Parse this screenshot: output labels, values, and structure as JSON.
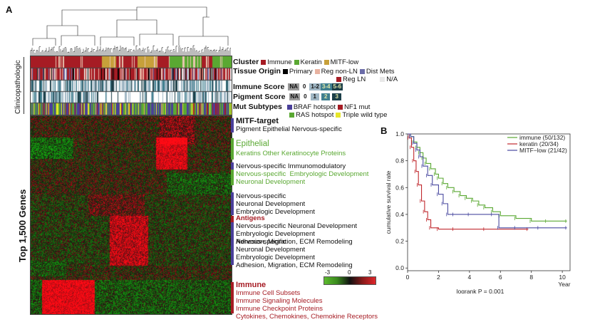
{
  "panel_a": {
    "label": "A",
    "side_label_clin": "Clinicopathologic",
    "side_label_genes": "Top 1,500 Genes",
    "rows": [
      {
        "label": "Cluster",
        "legend": [
          {
            "text": "Immune",
            "color": "#a61c24"
          },
          {
            "text": "Keratin",
            "color": "#5aa832"
          },
          {
            "text": "MITF-low",
            "color": "#c7a03a"
          }
        ]
      },
      {
        "label": "Tissue Origin",
        "legend": [
          {
            "text": "Primary",
            "color": "#000000"
          },
          {
            "text": "Reg non-LN",
            "color": "#e8b2a0"
          },
          {
            "text": "Dist Mets",
            "color": "#6b6ca8"
          },
          {
            "text": "Reg LN",
            "color": "#a61c24"
          },
          {
            "text": "N/A",
            "color": "#e8e8e8"
          }
        ]
      },
      {
        "label": "Immune Score",
        "legend": [
          {
            "text": "NA",
            "color": "#9a9a9a"
          },
          {
            "text": "0",
            "color": "#ffffff"
          },
          {
            "text": "1-2",
            "color": "#9fb6c4"
          },
          {
            "text": "3-4",
            "color": "#3f7f8f"
          },
          {
            "text": "5-6",
            "color": "#1c3f49"
          }
        ]
      },
      {
        "label": "Pigment Score",
        "legend": [
          {
            "text": "NA",
            "color": "#9a9a9a"
          },
          {
            "text": "0",
            "color": "#ffffff"
          },
          {
            "text": "1",
            "color": "#9fb6c4"
          },
          {
            "text": "2",
            "color": "#3f7f8f"
          },
          {
            "text": "3",
            "color": "#1c3f49"
          }
        ]
      },
      {
        "label": "Mut Subtypes",
        "legend": [
          {
            "text": "BRAF hotspot",
            "color": "#4a3f9a"
          },
          {
            "text": "NF1 mut",
            "color": "#a61c24"
          },
          {
            "text": "RAS hotspot",
            "color": "#5aa832"
          },
          {
            "text": "Triple wild type",
            "color": "#e6e62a"
          }
        ]
      }
    ],
    "gene_groups": [
      {
        "title": "MITF-target",
        "lines": [
          "Pigment Epithelial Nervous-specific"
        ],
        "bar": "#4a3f9a",
        "title_color": "#111111",
        "line_colors": [
          "#111111"
        ]
      },
      {
        "title": "Epithelial",
        "lines": [
          "Keratins Other Keratinocyte Proteins"
        ],
        "bar": "#5aa832",
        "title_color": "#5aa832",
        "line_colors": [
          "#5aa832"
        ]
      },
      {
        "title": "",
        "lines": [
          "Nervous-specific Immunomodulatory",
          "Nervous-specific  Embryologic Development",
          "Neuronal Development"
        ],
        "bar": "#4a3f9a",
        "title_color": "#111111",
        "line_colors": [
          "#111111",
          "#5aa832",
          "#5aa832"
        ]
      },
      {
        "title": "",
        "lines": [
          "Nervous-specific",
          "Neuronal Development",
          "Embryologic Development"
        ],
        "bar": "#4a3f9a",
        "title_color": "#111111",
        "line_colors": [
          "#111111",
          "#111111",
          "#111111"
        ]
      },
      {
        "title": "Antigens",
        "lines": [
          "Nervous-specific Neuronal Development",
          "Embryologic Development",
          "Adhesion, Migration, ECM Remodeling"
        ],
        "bar": "#4a3f9a",
        "title_color": "#a61c24",
        "line_colors": [
          "#111111",
          "#111111",
          "#111111"
        ]
      },
      {
        "title": "",
        "lines": [
          "Nervous-specific",
          "Neuronal Development",
          "Embryologic Development",
          "Adhesion, Migration, ECM Remodeling"
        ],
        "bar": "#4a3f9a",
        "title_color": "#111111",
        "line_colors": [
          "#111111",
          "#111111",
          "#111111",
          "#111111"
        ]
      },
      {
        "title": "Immune",
        "lines": [
          "Immune Cell Subsets",
          "Immune Signaling Molecules",
          "Immune Checkpoint Proteins",
          "Cytokines, Chemokines, Chemokine Receptors"
        ],
        "bar": "#a61c24",
        "title_color": "#a61c24",
        "line_colors": [
          "#a61c24",
          "#a61c24",
          "#a61c24",
          "#a61c24"
        ]
      }
    ],
    "color_key": {
      "ticks": [
        "-3",
        "0",
        "3"
      ],
      "min": -3,
      "max": 3
    }
  },
  "chart_data": {
    "type": "line",
    "panel_label": "B",
    "title": "",
    "xlabel": "Year",
    "ylabel": "cumulative survival rate",
    "xlim": [
      0,
      10.5
    ],
    "ylim": [
      -0.02,
      1.0
    ],
    "x_ticks": [
      "0",
      "2",
      "4",
      "6",
      "8",
      "10"
    ],
    "y_ticks": [
      "0.0",
      "0.2",
      "0.4",
      "0.6",
      "0.8",
      "1.0"
    ],
    "annotation": "logrank P = 0.001",
    "legend_position": "top-right",
    "series": [
      {
        "name": "immune (50/132)",
        "color": "#5aa832",
        "x": [
          0,
          0.2,
          0.4,
          0.6,
          0.8,
          1.0,
          1.2,
          1.5,
          1.8,
          2.0,
          2.3,
          2.6,
          3.0,
          3.4,
          3.8,
          4.2,
          4.6,
          5.0,
          5.5,
          6.0,
          7.0,
          8.0,
          9.0,
          10.3
        ],
        "y": [
          1.0,
          0.98,
          0.94,
          0.9,
          0.86,
          0.82,
          0.78,
          0.74,
          0.7,
          0.67,
          0.63,
          0.6,
          0.57,
          0.54,
          0.52,
          0.5,
          0.47,
          0.45,
          0.42,
          0.39,
          0.37,
          0.35,
          0.35,
          0.35
        ]
      },
      {
        "name": "keratin (20/34)",
        "color": "#c0282d",
        "x": [
          0,
          0.1,
          0.25,
          0.4,
          0.55,
          0.7,
          0.9,
          1.1,
          1.3,
          1.5,
          2.0,
          3.0,
          5.0,
          7.8
        ],
        "y": [
          1.0,
          0.97,
          0.9,
          0.8,
          0.72,
          0.62,
          0.5,
          0.42,
          0.36,
          0.3,
          0.29,
          0.29,
          0.29,
          0.29
        ]
      },
      {
        "name": "MITF−low (21/42)",
        "color": "#4a4aa0",
        "x": [
          0,
          0.2,
          0.4,
          0.6,
          0.8,
          1.0,
          1.3,
          1.6,
          2.0,
          2.3,
          2.6,
          3.0,
          4.0,
          5.5,
          5.9,
          7.0,
          8.5,
          10.3
        ],
        "y": [
          1.0,
          0.98,
          0.93,
          0.88,
          0.83,
          0.76,
          0.69,
          0.62,
          0.55,
          0.48,
          0.4,
          0.4,
          0.4,
          0.4,
          0.3,
          0.3,
          0.3,
          0.3
        ]
      }
    ]
  }
}
